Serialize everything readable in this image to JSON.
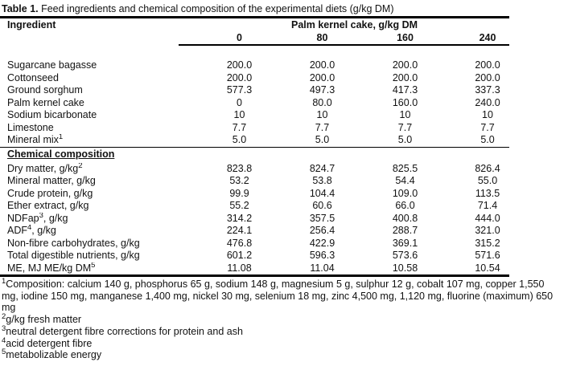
{
  "caption": {
    "label": "Table 1.",
    "text": " Feed ingredients and chemical composition of the experimental diets (g/kg DM)"
  },
  "table": {
    "col_header": "Ingredient",
    "span_header": "Palm kernel cake, g/kg DM",
    "levels": [
      "0",
      "80",
      "160",
      "240"
    ],
    "section_header": "Chemical composition",
    "ingredients": [
      {
        "pre": "Sugarcane bagasse",
        "sup": "",
        "post": "",
        "values": [
          "200.0",
          "200.0",
          "200.0",
          "200.0"
        ]
      },
      {
        "pre": "Cottonseed",
        "sup": "",
        "post": "",
        "values": [
          "200.0",
          "200.0",
          "200.0",
          "200.0"
        ]
      },
      {
        "pre": "Ground sorghum",
        "sup": "",
        "post": "",
        "values": [
          "577.3",
          "497.3",
          "417.3",
          "337.3"
        ]
      },
      {
        "pre": "Palm kernel cake",
        "sup": "",
        "post": "",
        "values": [
          "0",
          "80.0",
          "160.0",
          "240.0"
        ]
      },
      {
        "pre": "Sodium bicarbonate",
        "sup": "",
        "post": "",
        "values": [
          "10",
          "10",
          "10",
          "10"
        ]
      },
      {
        "pre": "Limestone",
        "sup": "",
        "post": "",
        "values": [
          "7.7",
          "7.7",
          "7.7",
          "7.7"
        ]
      },
      {
        "pre": "Mineral mix",
        "sup": "1",
        "post": "",
        "values": [
          "5.0",
          "5.0",
          "5.0",
          "5.0"
        ]
      }
    ],
    "composition": [
      {
        "pre": "Dry matter, g/kg",
        "sup": "2",
        "post": "",
        "values": [
          "823.8",
          "824.7",
          "825.5",
          "826.4"
        ]
      },
      {
        "pre": "Mineral matter, g/kg",
        "sup": "",
        "post": "",
        "values": [
          "53.2",
          "53.8",
          "54.4",
          "55.0"
        ]
      },
      {
        "pre": "Crude protein, g/kg",
        "sup": "",
        "post": "",
        "values": [
          "99.9",
          "104.4",
          "109.0",
          "113.5"
        ]
      },
      {
        "pre": "Ether extract, g/kg",
        "sup": "",
        "post": "",
        "values": [
          "55.2",
          "60.6",
          "66.0",
          "71.4"
        ]
      },
      {
        "pre": "NDFap",
        "sup": "3",
        "post": ", g/kg",
        "values": [
          "314.2",
          "357.5",
          "400.8",
          "444.0"
        ]
      },
      {
        "pre": "ADF",
        "sup": "4",
        "post": ", g/kg",
        "values": [
          "224.1",
          "256.4",
          "288.7",
          "321.0"
        ]
      },
      {
        "pre": "Non-fibre carbohydrates, g/kg",
        "sup": "",
        "post": "",
        "values": [
          "476.8",
          "422.9",
          "369.1",
          "315.2"
        ]
      },
      {
        "pre": "Total digestible nutrients, g/kg",
        "sup": "",
        "post": "",
        "values": [
          "601.2",
          "596.3",
          "573.6",
          "571.6"
        ]
      },
      {
        "pre": "ME, MJ ME/kg DM",
        "sup": "5",
        "post": "",
        "values": [
          "11.08",
          "11.04",
          "10.58",
          "10.54"
        ]
      }
    ]
  },
  "footnotes": [
    {
      "sup": "1",
      "text": "Composition: calcium 140 g, phosphorus 65 g, sodium 148 g, magnesium 5 g, sulphur 12 g, cobalt 107 mg, copper 1,550 mg, iodine 150 mg, manganese 1,400 mg, nickel 30 mg, selenium 18 mg, zinc 4,500 mg, 1,120 mg, fluorine (maximum) 650 mg"
    },
    {
      "sup": "2",
      "text": "g/kg fresh matter"
    },
    {
      "sup": "3",
      "text": "neutral detergent fibre corrections for protein and ash"
    },
    {
      "sup": "4",
      "text": "acid detergent fibre"
    },
    {
      "sup": "5",
      "text": "metabolizable energy"
    }
  ],
  "colors": {
    "text": "#121212",
    "rule": "#000000",
    "background": "#ffffff"
  }
}
